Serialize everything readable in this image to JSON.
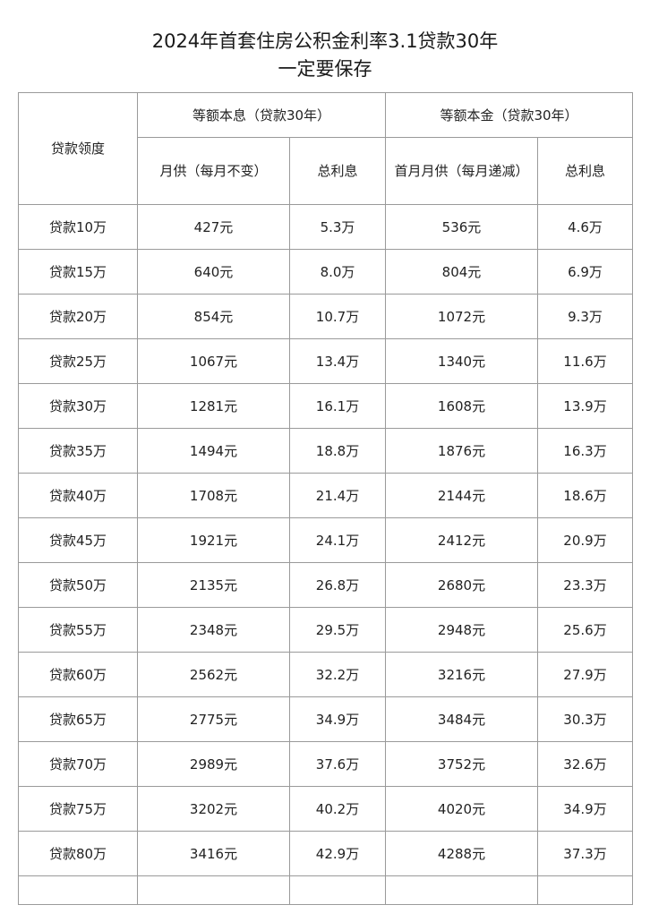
{
  "title": {
    "line1": "2024年首套住房公积金利率3.1贷款30年",
    "line2": "一定要保存"
  },
  "table": {
    "header": {
      "amount": "贷款领度",
      "group1": "等额本息（贷款30年）",
      "group2": "等额本金（贷款30年）",
      "g1_monthly": "月供（每月不变）",
      "g1_interest": "总利息",
      "g2_monthly": "首月月供（每月递减）",
      "g2_interest": "总利息"
    },
    "rows": [
      [
        "贷款10万",
        "427元",
        "5.3万",
        "536元",
        "4.6万"
      ],
      [
        "贷款15万",
        "640元",
        "8.0万",
        "804元",
        "6.9万"
      ],
      [
        "贷款20万",
        "854元",
        "10.7万",
        "1072元",
        "9.3万"
      ],
      [
        "贷款25万",
        "1067元",
        "13.4万",
        "1340元",
        "11.6万"
      ],
      [
        "贷款30万",
        "1281元",
        "16.1万",
        "1608元",
        "13.9万"
      ],
      [
        "贷款35万",
        "1494元",
        "18.8万",
        "1876元",
        "16.3万"
      ],
      [
        "贷款40万",
        "1708元",
        "21.4万",
        "2144元",
        "18.6万"
      ],
      [
        "贷款45万",
        "1921元",
        "24.1万",
        "2412元",
        "20.9万"
      ],
      [
        "贷款50万",
        "2135元",
        "26.8万",
        "2680元",
        "23.3万"
      ],
      [
        "贷款55万",
        "2348元",
        "29.5万",
        "2948元",
        "25.6万"
      ],
      [
        "贷款60万",
        "2562元",
        "32.2万",
        "3216元",
        "27.9万"
      ],
      [
        "贷款65万",
        "2775元",
        "34.9万",
        "3484元",
        "30.3万"
      ],
      [
        "贷款70万",
        "2989元",
        "37.6万",
        "3752元",
        "32.6万"
      ],
      [
        "贷款75万",
        "3202元",
        "40.2万",
        "4020元",
        "34.9万"
      ],
      [
        "贷款80万",
        "3416元",
        "42.9万",
        "4288元",
        "37.3万"
      ]
    ]
  }
}
